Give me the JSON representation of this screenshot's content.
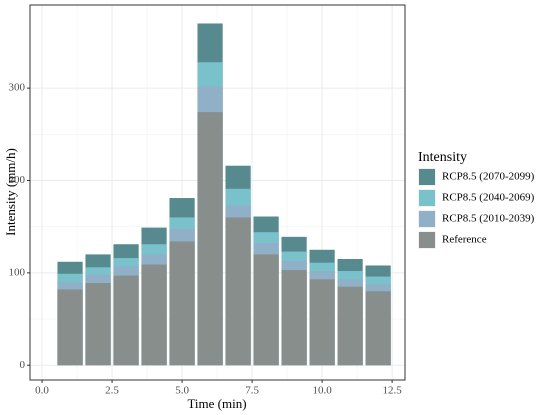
{
  "chart_data": {
    "type": "bar",
    "x_label": "Time (min)",
    "y_label": "Intensity (mm/h)",
    "legend_title": "Intensity",
    "x": [
      1,
      2,
      3,
      4,
      5,
      6,
      7,
      8,
      9,
      10,
      11,
      12
    ],
    "series": [
      {
        "name": "RCP8.5 (2070-2099)",
        "color": "#568a8e",
        "values": [
          112,
          120,
          131,
          149,
          181,
          370,
          216,
          161,
          139,
          125,
          115,
          108
        ]
      },
      {
        "name": "RCP8.5 (2040-2069)",
        "color": "#79c2cb",
        "values": [
          99,
          106,
          116,
          131,
          160,
          328,
          191,
          144,
          123,
          111,
          102,
          96
        ]
      },
      {
        "name": "RCP8.5 (2010-2039)",
        "color": "#8fb0c7",
        "values": [
          90,
          98,
          107,
          120,
          148,
          302,
          173,
          132,
          113,
          102,
          93,
          88
        ]
      },
      {
        "name": "Reference",
        "color": "#888e8c",
        "values": [
          82,
          89,
          97,
          109,
          134,
          274,
          160,
          120,
          103,
          93,
          85,
          80
        ]
      }
    ],
    "xlim": [
      -0.43,
      12.96
    ],
    "xticks": [
      {
        "value": 0,
        "label": "0.0"
      },
      2.5,
      {
        "value": 5,
        "label": "5.0"
      },
      7.5,
      {
        "value": 10,
        "label": "10.0"
      },
      12.5
    ],
    "ylim": [
      -16,
      390
    ],
    "yticks": [
      0,
      100,
      200,
      300
    ],
    "grid": true,
    "legend": "right"
  }
}
